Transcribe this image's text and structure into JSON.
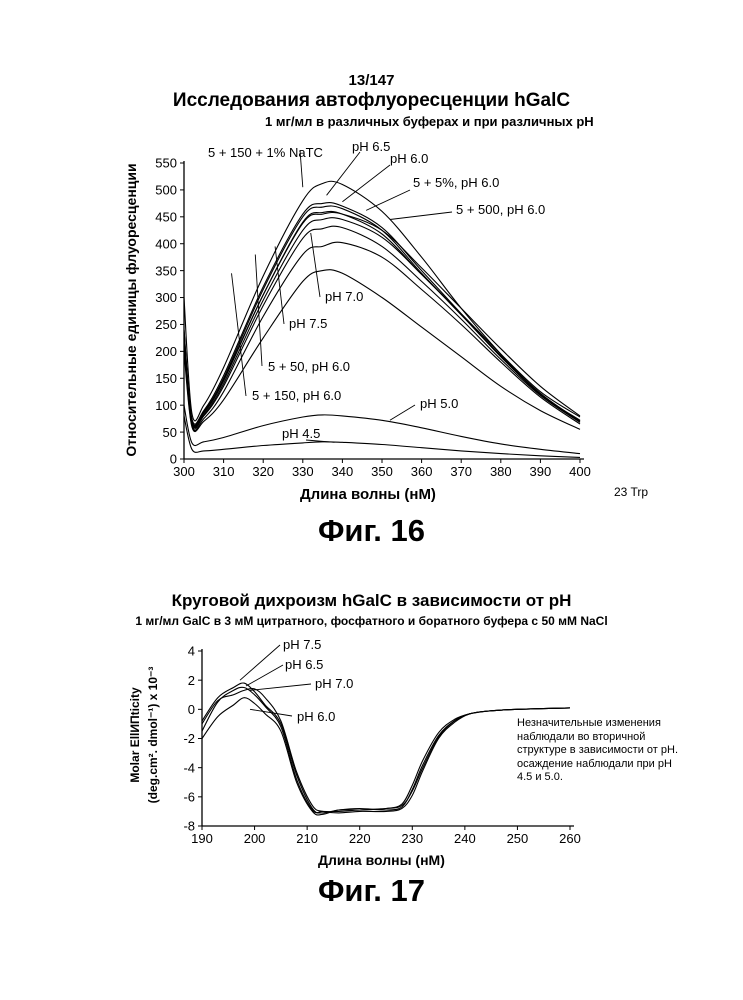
{
  "page_number": "13/147",
  "fig16": {
    "title": "Исследования автофлуоресценции hGalC",
    "subtitle": "1 мг/мл в различных буферах и при различных pH",
    "ylabel": "Относительные единицы флуоресценции",
    "xlabel": "Длина волны (нМ)",
    "note": "23 Trp",
    "fig_label": "Фиг. 16",
    "labels": [
      "5 + 150 + 1% NaTC",
      "pH 6.5",
      "pH 6.0",
      "5 + 5%, pH 6.0",
      "5 + 500, pH 6.0",
      "pH 7.0",
      "pH 7.5",
      "5 + 50, pH 6.0",
      "5 + 150, pH 6.0",
      "pH 5.0",
      "pH 4.5"
    ]
  },
  "fig17": {
    "title": "Круговой дихроизм hGalC в зависимости от pH",
    "subtitle": "1 мг/мл GalC в 3 мМ цитратного, фосфатного и боратного буфера с 50 мМ NaCl",
    "ylabel_line1": "Molar EllИПticity",
    "ylabel_line2": "(deg.cm². dmol⁻¹) x 10⁻³",
    "xlabel": "Длина волны (нМ)",
    "note": "Незначительные изменения наблюдали во вторичной структуре в зависимости от pH. осаждение наблюдали при pH 4.5 и 5.0.",
    "fig_label": "Фиг. 17",
    "labels": [
      "pH 7.5",
      "pH 6.5",
      "pH 7.0",
      "pH 6.0"
    ]
  },
  "chart_data": [
    {
      "type": "line",
      "title": "Исследования автофлуоресценции hGalC",
      "subtitle": "1 мг/мл в различных буферах и при различных pH",
      "xlabel": "Длина волны (нМ)",
      "ylabel": "Относительные единицы флуоресценции",
      "xlim": [
        300,
        400
      ],
      "ylim": [
        0,
        550
      ],
      "xticks": [
        300,
        310,
        320,
        330,
        340,
        350,
        360,
        370,
        380,
        390,
        400
      ],
      "yticks": [
        0,
        50,
        100,
        150,
        200,
        250,
        300,
        350,
        400,
        450,
        500,
        550
      ],
      "x": [
        300,
        302,
        305,
        310,
        320,
        330,
        335,
        340,
        350,
        360,
        370,
        380,
        390,
        400
      ],
      "series": [
        {
          "name": "5 + 150 + 1% NaTC",
          "values": [
            300,
            85,
            100,
            170,
            340,
            480,
            512,
            510,
            460,
            375,
            280,
            195,
            120,
            70
          ]
        },
        {
          "name": "pH 6.5",
          "values": [
            240,
            75,
            90,
            155,
            320,
            455,
            475,
            470,
            430,
            350,
            270,
            190,
            120,
            70
          ]
        },
        {
          "name": "pH 6.0",
          "values": [
            230,
            72,
            88,
            150,
            315,
            450,
            468,
            465,
            425,
            345,
            268,
            190,
            120,
            72
          ]
        },
        {
          "name": "5 + 5%, pH 6.0",
          "values": [
            235,
            70,
            85,
            145,
            305,
            440,
            458,
            455,
            418,
            343,
            270,
            195,
            125,
            78
          ]
        },
        {
          "name": "5 + 500, pH 6.0",
          "values": [
            240,
            72,
            87,
            148,
            305,
            438,
            455,
            455,
            425,
            355,
            280,
            205,
            135,
            80
          ]
        },
        {
          "name": "pH 7.0",
          "values": [
            220,
            65,
            80,
            135,
            285,
            410,
            428,
            430,
            395,
            330,
            260,
            185,
            118,
            68
          ]
        },
        {
          "name": "pH 7.5",
          "values": [
            210,
            62,
            75,
            125,
            265,
            380,
            395,
            402,
            375,
            315,
            250,
            180,
            115,
            65
          ]
        },
        {
          "name": "5 + 50, pH 6.0",
          "values": [
            225,
            68,
            82,
            140,
            295,
            425,
            445,
            445,
            412,
            343,
            268,
            192,
            122,
            70
          ]
        },
        {
          "name": "5 + 150, pH 6.0",
          "values": [
            200,
            60,
            70,
            110,
            225,
            330,
            350,
            345,
            300,
            245,
            190,
            135,
            90,
            55
          ]
        },
        {
          "name": "pH 5.0",
          "values": [
            100,
            30,
            32,
            40,
            62,
            78,
            82,
            80,
            72,
            58,
            42,
            28,
            18,
            10
          ]
        },
        {
          "name": "pH 4.5",
          "values": [
            80,
            18,
            15,
            18,
            25,
            30,
            32,
            31,
            27,
            21,
            15,
            10,
            6,
            3
          ]
        }
      ]
    },
    {
      "type": "line",
      "title": "Круговой дихроизм hGalC в зависимости от pH",
      "subtitle": "1 мг/мл GalC в 3 мМ цитратного, фосфатного и боратного буфера с 50 мМ NaCl",
      "xlabel": "Длина волны (нМ)",
      "ylabel": "Molar EllИПticity (deg.cm². dmol⁻¹) x 10⁻³",
      "xlim": [
        190,
        260
      ],
      "ylim": [
        -8,
        4
      ],
      "xticks": [
        190,
        200,
        210,
        220,
        230,
        240,
        250,
        260
      ],
      "yticks": [
        4,
        2,
        0,
        -2,
        -4,
        -6,
        -8
      ],
      "x": [
        190,
        193,
        196,
        198,
        200,
        202,
        205,
        208,
        211,
        213,
        216,
        220,
        225,
        228,
        230,
        232,
        235,
        238,
        241,
        245,
        250,
        255,
        260
      ],
      "series": [
        {
          "name": "pH 7.5",
          "values": [
            -0.8,
            0.8,
            1.5,
            1.8,
            1.2,
            0.3,
            -1.0,
            -4.5,
            -6.8,
            -7.1,
            -6.9,
            -6.8,
            -6.9,
            -6.7,
            -5.5,
            -3.8,
            -1.8,
            -0.8,
            -0.3,
            -0.1,
            0.0,
            0.05,
            0.1
          ]
        },
        {
          "name": "pH 6.5",
          "values": [
            -1.5,
            0.5,
            1.3,
            1.5,
            1.0,
            0.2,
            -1.2,
            -4.8,
            -6.9,
            -7.0,
            -7.0,
            -6.9,
            -6.8,
            -6.5,
            -5.2,
            -3.5,
            -1.6,
            -0.7,
            -0.3,
            -0.1,
            0.0,
            0.05,
            0.1
          ]
        },
        {
          "name": "pH 7.0",
          "values": [
            -1.0,
            0.6,
            1.0,
            1.3,
            1.4,
            0.8,
            -0.8,
            -4.3,
            -6.6,
            -7.0,
            -7.1,
            -7.0,
            -7.0,
            -6.8,
            -5.9,
            -4.2,
            -2.0,
            -0.9,
            -0.3,
            -0.1,
            0.0,
            0.05,
            0.1
          ]
        },
        {
          "name": "pH 6.0",
          "values": [
            -2.0,
            -0.5,
            0.3,
            0.8,
            0.4,
            -0.3,
            -1.5,
            -5.0,
            -7.0,
            -7.2,
            -6.9,
            -6.9,
            -6.8,
            -6.6,
            -5.6,
            -4.0,
            -1.9,
            -0.8,
            -0.3,
            -0.1,
            0.0,
            0.05,
            0.1
          ]
        }
      ]
    }
  ]
}
